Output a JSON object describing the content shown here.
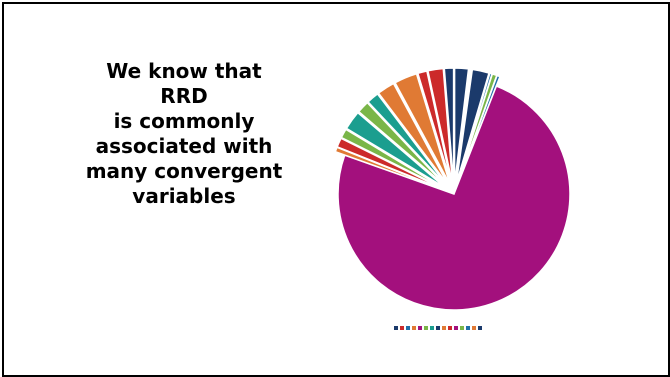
{
  "headline": {
    "lines": [
      "We know that",
      "RRD",
      "is commonly",
      "associated with",
      "many convergent",
      "variables"
    ]
  },
  "chart_data": {
    "type": "pie",
    "title": "",
    "values": [
      1.8,
      0.3,
      2.2,
      0.3,
      0.6,
      0.4,
      70,
      0.6,
      1.2,
      1.2,
      2.5,
      1.6,
      1.6,
      2.3,
      3.0,
      1.2,
      2.0,
      1.2
    ],
    "colors": [
      "#1b3a6b",
      "#ffffff",
      "#1b3a6b",
      "#1f6fa8",
      "#7ab648",
      "#1f6fa8",
      "#a3107d",
      "#e07a34",
      "#cc2a2a",
      "#7ab648",
      "#1b9e8f",
      "#7ab648",
      "#1b9e8f",
      "#e07a34",
      "#e07a34",
      "#cc2a2a",
      "#cc2a2a",
      "#1b3a6b"
    ],
    "legend_colors": [
      "#1b3a6b",
      "#cc2a2a",
      "#1f6fa8",
      "#e07a34",
      "#a3107d",
      "#7ab648",
      "#1b9e8f",
      "#1b3a6b",
      "#e07a34",
      "#cc2a2a",
      "#a3107d",
      "#7ab648",
      "#1f6fa8",
      "#e07a34",
      "#1b3a6b"
    ]
  }
}
